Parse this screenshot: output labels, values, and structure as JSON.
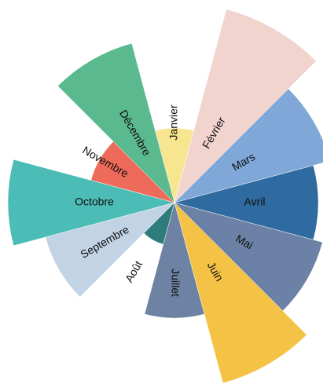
{
  "chart_data": {
    "type": "rose",
    "categories": [
      "Janvier",
      "Février",
      "Mars",
      "Avril",
      "Mai",
      "Juin",
      "Juillet",
      "Août",
      "Septembre",
      "Octobre",
      "Novembre",
      "Décembre"
    ],
    "values": [
      95,
      255,
      205,
      183,
      195,
      238,
      147,
      55,
      170,
      212,
      110,
      210
    ],
    "colors": [
      "#f7e68f",
      "#f2d4cf",
      "#7fa7d8",
      "#2f6aa0",
      "#6b82a6",
      "#f4c245",
      "#6e82a3",
      "#2e7c7c",
      "#c3d3e6",
      "#4cbdb6",
      "#ee6b5b",
      "#5bb98f"
    ]
  }
}
